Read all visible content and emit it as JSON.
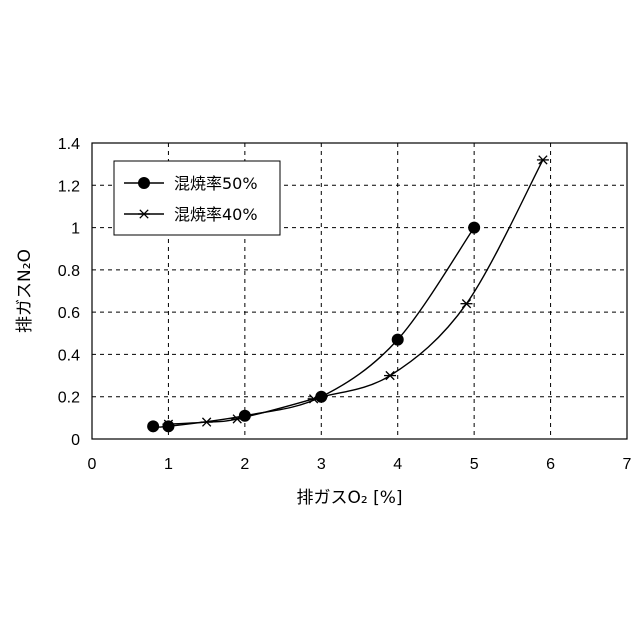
{
  "chart_data": {
    "type": "line",
    "xlabel": "排ガスO₂ [%]",
    "ylabel": "排ガスN₂O",
    "xlim": [
      0,
      7
    ],
    "ylim": [
      0,
      1.4
    ],
    "xticks": [
      "0",
      "1",
      "2",
      "3",
      "4",
      "5",
      "6",
      "7"
    ],
    "yticks": [
      "0",
      "0.2",
      "0.4",
      "0.6",
      "0.8",
      "1",
      "1.2",
      "1.4"
    ],
    "grid": true,
    "legend_position": "top-left",
    "series": [
      {
        "name": "混焼率50%",
        "marker": "circle",
        "color": "#000000",
        "points": [
          [
            0.8,
            0.06
          ],
          [
            1.0,
            0.06
          ],
          [
            2.0,
            0.11
          ],
          [
            3.0,
            0.2
          ],
          [
            4.0,
            0.47
          ],
          [
            5.0,
            1.0
          ]
        ]
      },
      {
        "name": "混焼率40%",
        "marker": "asterisk",
        "color": "#000000",
        "points": [
          [
            1.0,
            0.07
          ],
          [
            1.5,
            0.08
          ],
          [
            1.9,
            0.095
          ],
          [
            2.9,
            0.19
          ],
          [
            3.9,
            0.3
          ],
          [
            4.9,
            0.64
          ],
          [
            5.9,
            1.32
          ]
        ]
      }
    ]
  }
}
